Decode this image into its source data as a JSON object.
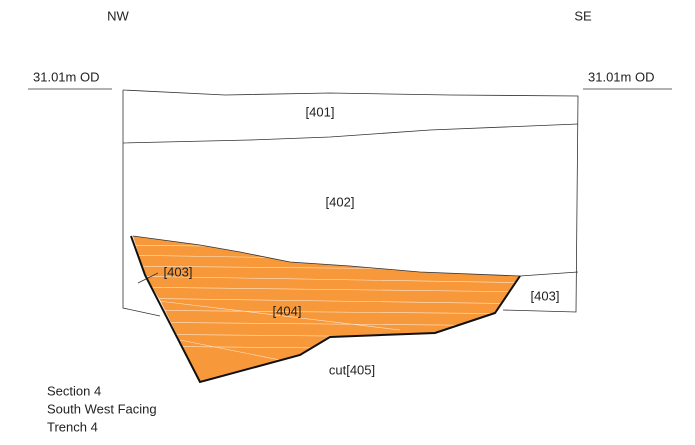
{
  "orientation": {
    "left": "NW",
    "right": "SE"
  },
  "datum": {
    "left": "31.01m OD",
    "right": "31.01m OD"
  },
  "contexts": {
    "topsoil": "[401]",
    "subsoil": "[402]",
    "natural_left": "[403]",
    "natural_right": "[403]",
    "fill": "[404]",
    "cut": "cut[405]"
  },
  "caption": [
    "Section 4",
    "South West Facing",
    "Trench 4"
  ]
}
